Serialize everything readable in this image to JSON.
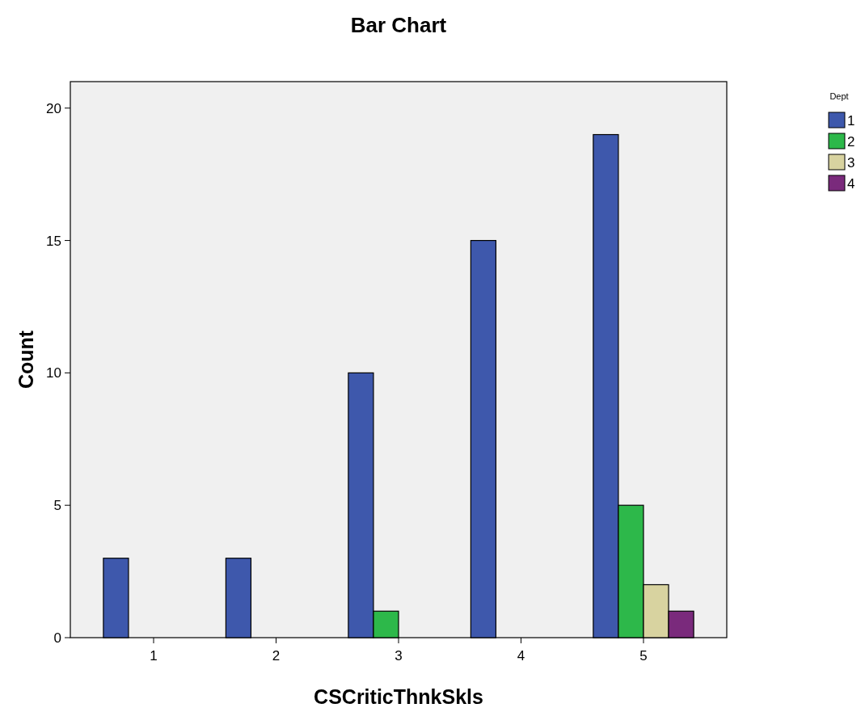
{
  "chart_data": {
    "type": "bar",
    "title": "Bar Chart",
    "xlabel": "CSCriticThnkSkls",
    "ylabel": "Count",
    "legend_title": "Dept",
    "categories": [
      "1",
      "2",
      "3",
      "4",
      "5"
    ],
    "series": [
      {
        "name": "1",
        "color": "#3e58ac",
        "values": [
          3,
          3,
          10,
          15,
          19
        ]
      },
      {
        "name": "2",
        "color": "#2db84a",
        "values": [
          0,
          0,
          1,
          0,
          5
        ]
      },
      {
        "name": "3",
        "color": "#d8d3a0",
        "values": [
          0,
          0,
          0,
          0,
          2
        ]
      },
      {
        "name": "4",
        "color": "#7a2a7c",
        "values": [
          0,
          0,
          0,
          0,
          1
        ]
      }
    ],
    "ylim": [
      0,
      21
    ],
    "yticks": [
      0,
      5,
      10,
      15,
      20
    ],
    "grid": false,
    "legend": "top right"
  }
}
